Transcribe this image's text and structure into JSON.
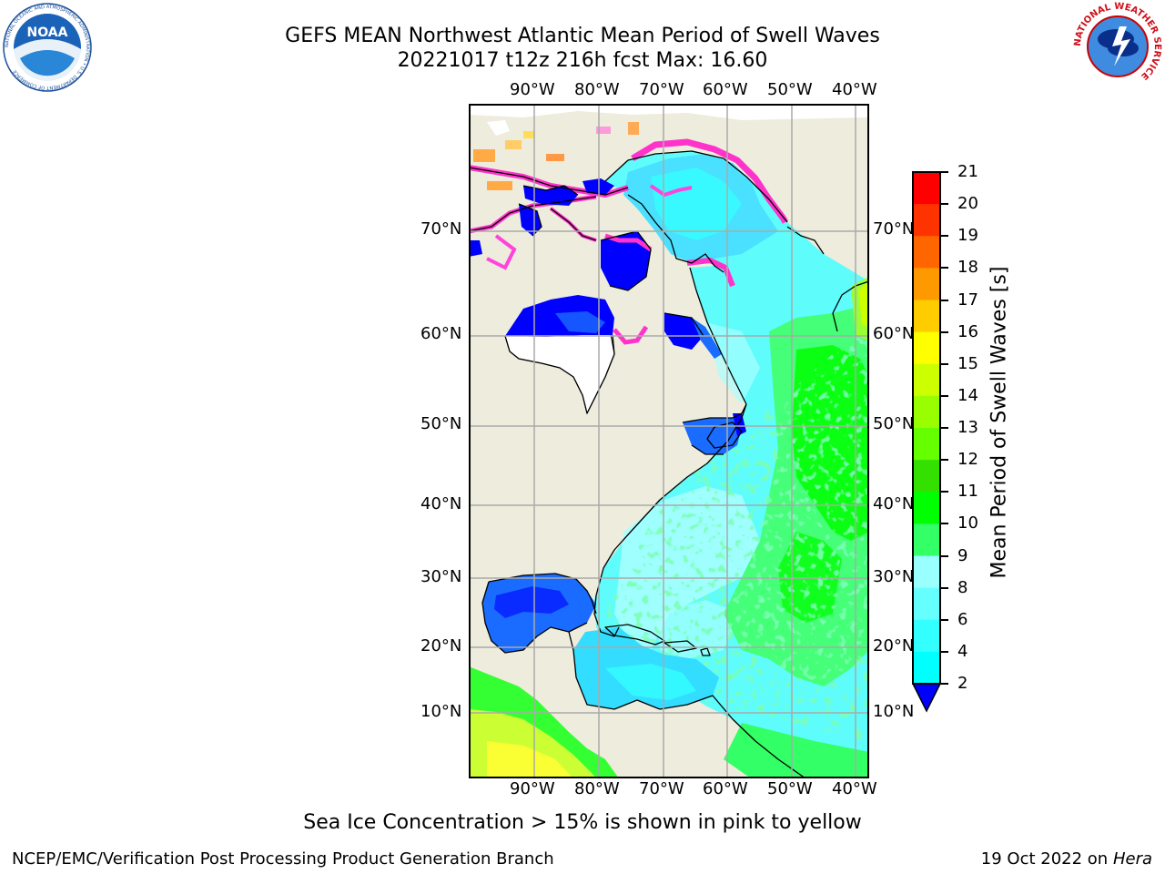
{
  "title_line1": "GEFS MEAN Northwest Atlantic Mean Period of Swell Waves",
  "title_line2": "20221017 t12z 216h fcst   Max: 16.60",
  "lon_labels": [
    "90°W",
    "80°W",
    "70°W",
    "60°W",
    "50°W",
    "40°W"
  ],
  "lat_labels": [
    "70°N",
    "60°N",
    "50°N",
    "40°N",
    "30°N",
    "20°N",
    "10°N"
  ],
  "colorbar": {
    "title": "Mean Period of Swell Waves [s]",
    "ticks": [
      "2",
      "4",
      "6",
      "8",
      "9",
      "10",
      "11",
      "12",
      "13",
      "14",
      "15",
      "16",
      "17",
      "18",
      "19",
      "20",
      "21"
    ],
    "colors": [
      "#0066ff",
      "#00ffff",
      "#33ffff",
      "#66ffff",
      "#99ffff",
      "#33ff66",
      "#00ff00",
      "#33e000",
      "#66ff00",
      "#99ff00",
      "#ccff00",
      "#ffff00",
      "#ffcc00",
      "#ff9900",
      "#ff6600",
      "#ff3300",
      "#ff0000"
    ],
    "under_color": "#0000ff"
  },
  "map_colors": {
    "land": "#eeecdc",
    "deep_blue": "#0000ff",
    "blue": "#1a6bff",
    "cyan": "#33ffff",
    "light_cyan": "#99ffff",
    "green": "#33ff66",
    "bright_green": "#00ff00",
    "yellow_green": "#ccff00",
    "ice_pink": "#ff33cc"
  },
  "caption": "Sea Ice Concentration > 15% is shown in pink to yellow",
  "footer_left": "NCEP/EMC/Verification Post Processing Product Generation Branch",
  "footer_right_date": "19 Oct 2022 on ",
  "footer_right_host": "Hera",
  "logo_left": "NOAA",
  "logo_left_ring": "NATIONAL OCEANIC AND ATMOSPHERIC ADMINISTRATION • U.S. DEPARTMENT OF COMMERCE",
  "logo_right_ring": "NATIONAL WEATHER SERVICE"
}
